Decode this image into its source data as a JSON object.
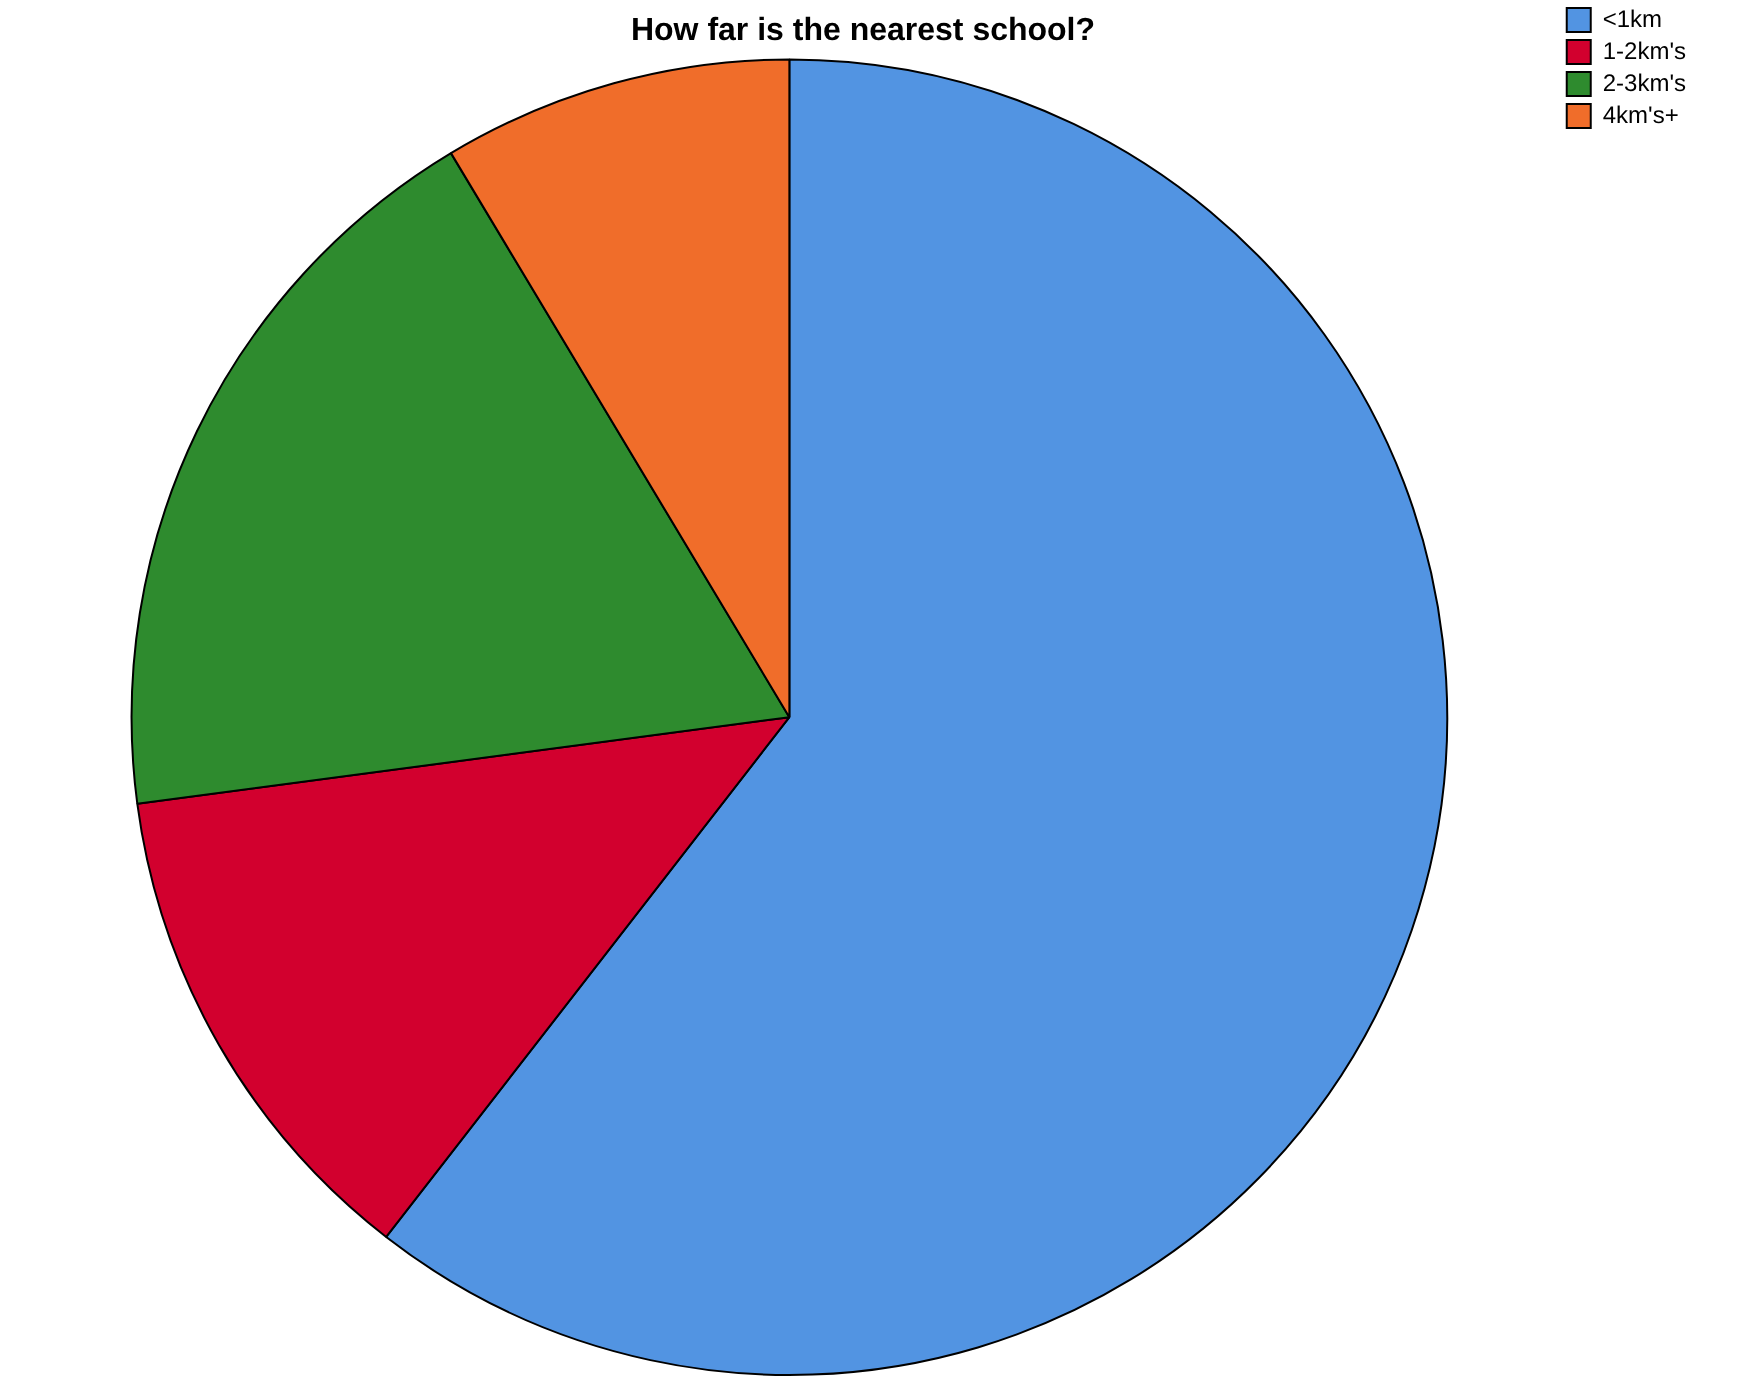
{
  "chart_data": {
    "type": "pie",
    "title": "How far is the nearest school?",
    "categories": [
      "<1km",
      "1-2km's",
      "2-3km's",
      "4km's+"
    ],
    "values": [
      60.5,
      12.4,
      18.5,
      8.6
    ],
    "colors": [
      "#5294e2",
      "#d2002e",
      "#2e8b2e",
      "#f06d2a"
    ],
    "legend": "top right"
  }
}
